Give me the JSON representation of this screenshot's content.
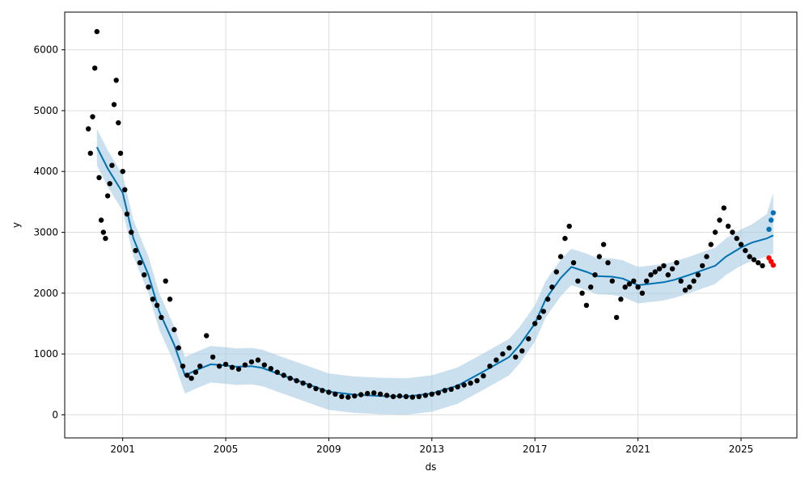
{
  "chart_data": {
    "type": "line",
    "xlabel": "ds",
    "ylabel": "y",
    "x_ticks": [
      "2001",
      "2005",
      "2009",
      "2013",
      "2017",
      "2021",
      "2025"
    ],
    "y_ticks": [
      "0",
      "1000",
      "2000",
      "3000",
      "4000",
      "5000",
      "6000"
    ],
    "xlim": [
      "1998-10-01",
      "2027-03-01"
    ],
    "ylim": [
      -380,
      6620
    ],
    "grid": true,
    "legend": "none",
    "colors": {
      "observed": "#000000",
      "forecast_line": "#0072B2",
      "uncertainty_band": "#A6CBE3",
      "highlight": "#FF0000",
      "grid": "#DDDDDD"
    },
    "series": [
      {
        "role": "forecast",
        "x": [
          "2000-01-01",
          "2000-06-01",
          "2001-01-01",
          "2001-06-01",
          "2002-01-01",
          "2002-06-01",
          "2003-01-01",
          "2003-06-01",
          "2004-01-01",
          "2004-06-01",
          "2005-01-01",
          "2005-06-01",
          "2006-01-01",
          "2006-06-01",
          "2007-01-01",
          "2008-01-01",
          "2009-01-01",
          "2010-01-01",
          "2011-01-01",
          "2012-01-01",
          "2013-01-01",
          "2014-01-01",
          "2015-01-01",
          "2016-01-01",
          "2016-06-01",
          "2017-01-01",
          "2017-06-01",
          "2018-01-01",
          "2018-06-01",
          "2019-01-01",
          "2019-06-01",
          "2020-01-01",
          "2020-06-01",
          "2021-01-01",
          "2021-06-01",
          "2022-01-01",
          "2022-06-01",
          "2023-01-01",
          "2024-01-01",
          "2024-06-01",
          "2025-01-01",
          "2025-06-01",
          "2026-01-01",
          "2026-04-01"
        ],
        "values": [
          4400,
          4050,
          3650,
          2900,
          2300,
          1700,
          1150,
          650,
          760,
          830,
          810,
          790,
          800,
          770,
          680,
          530,
          380,
          330,
          310,
          300,
          350,
          480,
          710,
          950,
          1150,
          1500,
          1900,
          2250,
          2430,
          2350,
          2280,
          2270,
          2240,
          2130,
          2150,
          2180,
          2220,
          2300,
          2450,
          2600,
          2750,
          2830,
          2900,
          2950
        ]
      },
      {
        "role": "uncertainty_upper",
        "x": [
          "2000-01-01",
          "2000-06-01",
          "2001-01-01",
          "2001-06-01",
          "2002-01-01",
          "2002-06-01",
          "2003-01-01",
          "2003-06-01",
          "2004-01-01",
          "2004-06-01",
          "2005-01-01",
          "2005-06-01",
          "2006-01-01",
          "2006-06-01",
          "2007-01-01",
          "2008-01-01",
          "2009-01-01",
          "2010-01-01",
          "2011-01-01",
          "2012-01-01",
          "2013-01-01",
          "2014-01-01",
          "2015-01-01",
          "2016-01-01",
          "2016-06-01",
          "2017-01-01",
          "2017-06-01",
          "2018-01-01",
          "2018-06-01",
          "2019-01-01",
          "2019-06-01",
          "2020-01-01",
          "2020-06-01",
          "2021-01-01",
          "2021-06-01",
          "2022-01-01",
          "2022-06-01",
          "2023-01-01",
          "2024-01-01",
          "2024-06-01",
          "2025-01-01",
          "2025-06-01",
          "2026-01-01",
          "2026-04-01"
        ],
        "values": [
          4700,
          4350,
          3950,
          3200,
          2600,
          2000,
          1450,
          950,
          1060,
          1130,
          1110,
          1090,
          1100,
          1070,
          980,
          830,
          680,
          630,
          610,
          600,
          650,
          780,
          1010,
          1250,
          1450,
          1800,
          2200,
          2550,
          2730,
          2650,
          2580,
          2570,
          2540,
          2430,
          2450,
          2480,
          2520,
          2600,
          2750,
          2900,
          3050,
          3130,
          3300,
          3650
        ]
      },
      {
        "role": "uncertainty_lower",
        "x": [
          "2000-01-01",
          "2000-06-01",
          "2001-01-01",
          "2001-06-01",
          "2002-01-01",
          "2002-06-01",
          "2003-01-01",
          "2003-06-01",
          "2004-01-01",
          "2004-06-01",
          "2005-01-01",
          "2005-06-01",
          "2006-01-01",
          "2006-06-01",
          "2007-01-01",
          "2008-01-01",
          "2009-01-01",
          "2010-01-01",
          "2011-01-01",
          "2012-01-01",
          "2013-01-01",
          "2014-01-01",
          "2015-01-01",
          "2016-01-01",
          "2016-06-01",
          "2017-01-01",
          "2017-06-01",
          "2018-01-01",
          "2018-06-01",
          "2019-01-01",
          "2019-06-01",
          "2020-01-01",
          "2020-06-01",
          "2021-01-01",
          "2021-06-01",
          "2022-01-01",
          "2022-06-01",
          "2023-01-01",
          "2024-01-01",
          "2024-06-01",
          "2025-01-01",
          "2025-06-01",
          "2026-01-01",
          "2026-04-01"
        ],
        "values": [
          4100,
          3750,
          3350,
          2600,
          2000,
          1400,
          850,
          350,
          460,
          530,
          510,
          490,
          500,
          470,
          380,
          230,
          80,
          30,
          10,
          0,
          50,
          180,
          410,
          650,
          850,
          1200,
          1600,
          1950,
          2130,
          2050,
          1980,
          1970,
          1940,
          1830,
          1850,
          1880,
          1920,
          2000,
          2150,
          2300,
          2450,
          2530,
          2600,
          2650
        ]
      },
      {
        "role": "observed",
        "x": [
          "1999-09-01",
          "1999-10-01",
          "1999-11-01",
          "1999-12-01",
          "2000-01-01",
          "2000-02-01",
          "2000-03-01",
          "2000-04-01",
          "2000-05-01",
          "2000-06-01",
          "2000-07-01",
          "2000-08-01",
          "2000-09-01",
          "2000-10-01",
          "2000-11-01",
          "2000-12-01",
          "2001-01-01",
          "2001-02-01",
          "2001-03-01",
          "2001-05-01",
          "2001-07-01",
          "2001-09-01",
          "2001-11-01",
          "2002-01-01",
          "2002-03-01",
          "2002-05-01",
          "2002-07-01",
          "2002-09-01",
          "2002-11-01",
          "2003-01-01",
          "2003-03-01",
          "2003-05-01",
          "2003-07-01",
          "2003-09-01",
          "2003-11-01",
          "2004-01-01",
          "2004-04-01",
          "2004-07-01",
          "2004-10-01",
          "2005-01-01",
          "2005-04-01",
          "2005-07-01",
          "2005-10-01",
          "2006-01-01",
          "2006-04-01",
          "2006-07-01",
          "2006-10-01",
          "2007-01-01",
          "2007-04-01",
          "2007-07-01",
          "2007-10-01",
          "2008-01-01",
          "2008-04-01",
          "2008-07-01",
          "2008-10-01",
          "2009-01-01",
          "2009-04-01",
          "2009-07-01",
          "2009-10-01",
          "2010-01-01",
          "2010-04-01",
          "2010-07-01",
          "2010-10-01",
          "2011-01-01",
          "2011-04-01",
          "2011-07-01",
          "2011-10-01",
          "2012-01-01",
          "2012-04-01",
          "2012-07-01",
          "2012-10-01",
          "2013-01-01",
          "2013-04-01",
          "2013-07-01",
          "2013-10-01",
          "2014-01-01",
          "2014-04-01",
          "2014-07-01",
          "2014-10-01",
          "2015-01-01",
          "2015-04-01",
          "2015-07-01",
          "2015-10-01",
          "2016-01-01",
          "2016-04-01",
          "2016-07-01",
          "2016-10-01",
          "2017-01-01",
          "2017-03-01",
          "2017-05-01",
          "2017-07-01",
          "2017-09-01",
          "2017-11-01",
          "2018-01-01",
          "2018-03-01",
          "2018-05-01",
          "2018-07-01",
          "2018-09-01",
          "2018-11-01",
          "2019-01-01",
          "2019-03-01",
          "2019-05-01",
          "2019-07-01",
          "2019-09-01",
          "2019-11-01",
          "2020-01-01",
          "2020-03-01",
          "2020-05-01",
          "2020-07-01",
          "2020-09-01",
          "2020-11-01",
          "2021-01-01",
          "2021-03-01",
          "2021-05-01",
          "2021-07-01",
          "2021-09-01",
          "2021-11-01",
          "2022-01-01",
          "2022-03-01",
          "2022-05-01",
          "2022-07-01",
          "2022-09-01",
          "2022-11-01",
          "2023-01-01",
          "2023-03-01",
          "2023-05-01",
          "2023-07-01",
          "2023-09-01",
          "2023-11-01",
          "2024-01-01",
          "2024-03-01",
          "2024-05-01",
          "2024-07-01",
          "2024-09-01",
          "2024-11-01",
          "2025-01-01",
          "2025-03-01",
          "2025-05-01",
          "2025-07-01",
          "2025-09-01",
          "2025-11-01"
        ],
        "values": [
          4700,
          4300,
          4900,
          5700,
          6300,
          3900,
          3200,
          3000,
          2900,
          3600,
          3800,
          4100,
          5100,
          5500,
          4800,
          4300,
          4000,
          3700,
          3300,
          3000,
          2700,
          2500,
          2300,
          2100,
          1900,
          1800,
          1600,
          2200,
          1900,
          1400,
          1100,
          800,
          650,
          600,
          700,
          800,
          1300,
          950,
          800,
          830,
          780,
          750,
          820,
          870,
          900,
          820,
          760,
          700,
          650,
          600,
          560,
          520,
          480,
          430,
          400,
          370,
          340,
          300,
          290,
          310,
          330,
          350,
          360,
          340,
          320,
          300,
          310,
          300,
          290,
          300,
          320,
          340,
          360,
          400,
          420,
          460,
          490,
          520,
          560,
          640,
          800,
          900,
          1000,
          1100,
          950,
          1050,
          1250,
          1500,
          1600,
          1700,
          1900,
          2100,
          2350,
          2600,
          2900,
          3100,
          2500,
          2200,
          2000,
          1800,
          2100,
          2300,
          2600,
          2800,
          2500,
          2200,
          1600,
          1900,
          2100,
          2150,
          2200,
          2100,
          2000,
          2200,
          2300,
          2350,
          2400,
          2450,
          2300,
          2400,
          2500,
          2200,
          2050,
          2100,
          2200,
          2300,
          2450,
          2600,
          2800,
          3000,
          3200,
          3400,
          3100,
          3000,
          2900,
          2800,
          2700,
          2600,
          2550,
          2500,
          2450
        ]
      },
      {
        "role": "forecast_tail",
        "x": [
          "2026-02-01",
          "2026-03-01",
          "2026-04-01"
        ],
        "values": [
          3050,
          3200,
          3320
        ]
      },
      {
        "role": "highlight_actual",
        "x": [
          "2026-02-01",
          "2026-03-01",
          "2026-04-01"
        ],
        "values": [
          2580,
          2520,
          2460
        ]
      }
    ]
  }
}
